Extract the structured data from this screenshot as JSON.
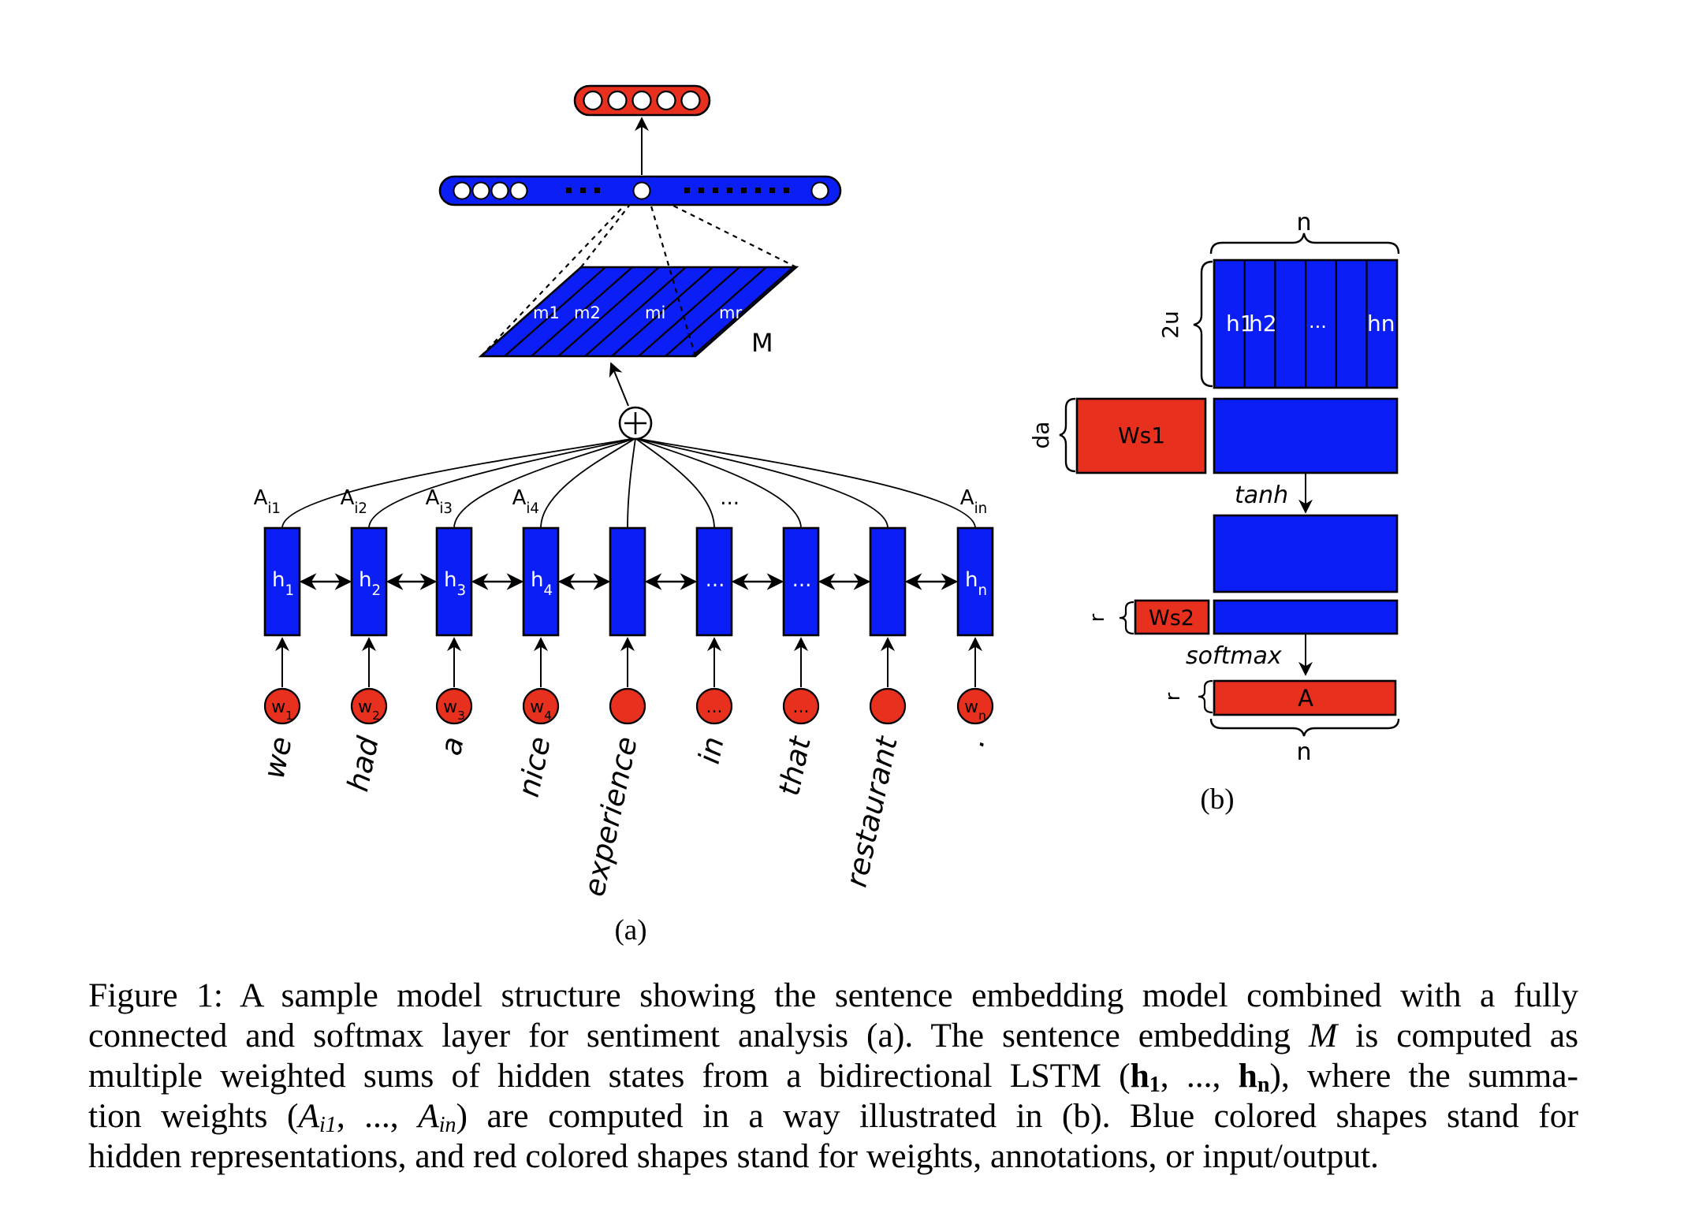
{
  "colors": {
    "hidden": "#0a1ef5",
    "weight": "#e8301e",
    "stroke": "#000000",
    "text_on_shape": "#ffffff"
  },
  "panel_a": {
    "label": "(a)",
    "words": [
      "we",
      "had",
      "a",
      "nice",
      "experience",
      "in",
      "that",
      "restaurant",
      "."
    ],
    "input_labels": [
      "w1",
      "w2",
      "w3",
      "w4",
      "",
      "...",
      "...",
      "",
      "wn"
    ],
    "hidden_labels": [
      "h1",
      "h2",
      "h3",
      "h4",
      "",
      "...",
      "...",
      "",
      "hn"
    ],
    "attention_labels": [
      "Ai1",
      "Ai2",
      "Ai3",
      "Ai4",
      "...",
      "Ain"
    ],
    "embedding_row_labels": [
      "m1",
      "m2",
      "mi",
      "mr"
    ],
    "embedding_label": "M",
    "sum_icon": "circle-plus-icon",
    "fc_ellipsis": "...",
    "fc_node_count_left": 4,
    "output_node_count": 5
  },
  "panel_b": {
    "label": "(b)",
    "top_n": "n",
    "dim_2u": "2u",
    "hidden_cols": [
      "h1",
      "h2",
      "...",
      "hn"
    ],
    "da": "da",
    "ws1": "Ws1",
    "tanh": "tanh",
    "r1": "r",
    "ws2": "Ws2",
    "softmax": "softmax",
    "r2": "r",
    "A": "A",
    "bottom_n": "n"
  },
  "caption": {
    "prefix": "Figure 1: A sample model structure showing the sentence embedding model combined with a fully",
    "l2a": "connected and softmax layer for sentiment analysis (a). The sentence embedding",
    "l2b": "M",
    "l2c": "is computed as",
    "l3a": "multiple weighted sums of hidden states from a bidirectional LSTM (",
    "l3b": "h",
    "l3c": "1",
    "l3d": ", ..., ",
    "l3e": "h",
    "l3f": "n",
    "l3g": "), where the summa-",
    "l4a": "tion weights (",
    "l4b": "A",
    "l4c": "i1",
    "l4d": ", ..., ",
    "l4e": "A",
    "l4f": "in",
    "l4g": ") are computed in a way illustrated in (b). Blue colored shapes stand for",
    "l5": "hidden representations, and red colored shapes stand for weights, annotations, or input/output."
  }
}
